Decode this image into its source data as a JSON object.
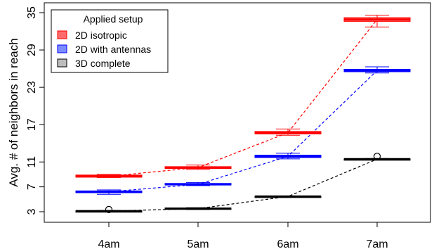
{
  "chart_data": {
    "type": "boxplot",
    "title": "",
    "xlabel": "",
    "ylabel": "Avg. # of neighbors in reach",
    "categories": [
      "4am",
      "5am",
      "6am",
      "7am"
    ],
    "yticks": [
      3,
      7,
      11,
      17,
      23,
      29,
      35
    ],
    "ylim": [
      3,
      35
    ],
    "legend": {
      "title": "Applied setup",
      "position": "top-left"
    },
    "series": [
      {
        "name": "2D isotropic",
        "color": "#ff0000",
        "fill": "#ff6b6b",
        "boxes": [
          {
            "category": "4am",
            "whislo": 8.5,
            "q1": 8.55,
            "med": 8.7,
            "q3": 8.9,
            "whishi": 9.0,
            "outliers": []
          },
          {
            "category": "5am",
            "whislo": 9.8,
            "q1": 9.95,
            "med": 10.1,
            "q3": 10.25,
            "whishi": 10.5,
            "outliers": []
          },
          {
            "category": "6am",
            "whislo": 15.3,
            "q1": 15.5,
            "med": 15.7,
            "q3": 15.9,
            "whishi": 16.3,
            "outliers": []
          },
          {
            "category": "7am",
            "whislo": 32.7,
            "q1": 33.6,
            "med": 33.9,
            "q3": 34.2,
            "whishi": 34.6,
            "outliers": []
          }
        ]
      },
      {
        "name": "2D with antennas",
        "color": "#0000ff",
        "fill": "#7b8cff",
        "boxes": [
          {
            "category": "4am",
            "whislo": 5.8,
            "q1": 6.05,
            "med": 6.2,
            "q3": 6.35,
            "whishi": 6.5,
            "outliers": []
          },
          {
            "category": "5am",
            "whislo": 7.2,
            "q1": 7.3,
            "med": 7.4,
            "q3": 7.55,
            "whishi": 7.7,
            "outliers": []
          },
          {
            "category": "6am",
            "whislo": 11.5,
            "q1": 11.7,
            "med": 11.9,
            "q3": 12.1,
            "whishi": 12.4,
            "outliers": []
          },
          {
            "category": "7am",
            "whislo": 25.3,
            "q1": 25.5,
            "med": 25.7,
            "q3": 25.9,
            "whishi": 26.3,
            "outliers": []
          }
        ]
      },
      {
        "name": "3D complete",
        "color": "#000000",
        "fill": "#bdbdbd",
        "boxes": [
          {
            "category": "4am",
            "whislo": 3.0,
            "q1": 3.05,
            "med": 3.1,
            "q3": 3.15,
            "whishi": 3.2,
            "outliers": [
              3.35
            ]
          },
          {
            "category": "5am",
            "whislo": 3.35,
            "q1": 3.4,
            "med": 3.5,
            "q3": 3.6,
            "whishi": 3.65,
            "outliers": []
          },
          {
            "category": "6am",
            "whislo": 5.35,
            "q1": 5.4,
            "med": 5.45,
            "q3": 5.5,
            "whishi": 5.55,
            "outliers": []
          },
          {
            "category": "7am",
            "whislo": 11.35,
            "q1": 11.4,
            "med": 11.45,
            "q3": 11.5,
            "whishi": 11.55,
            "outliers": [
              11.9
            ]
          }
        ]
      }
    ],
    "trend_lines": "dashed line through medians per series"
  }
}
